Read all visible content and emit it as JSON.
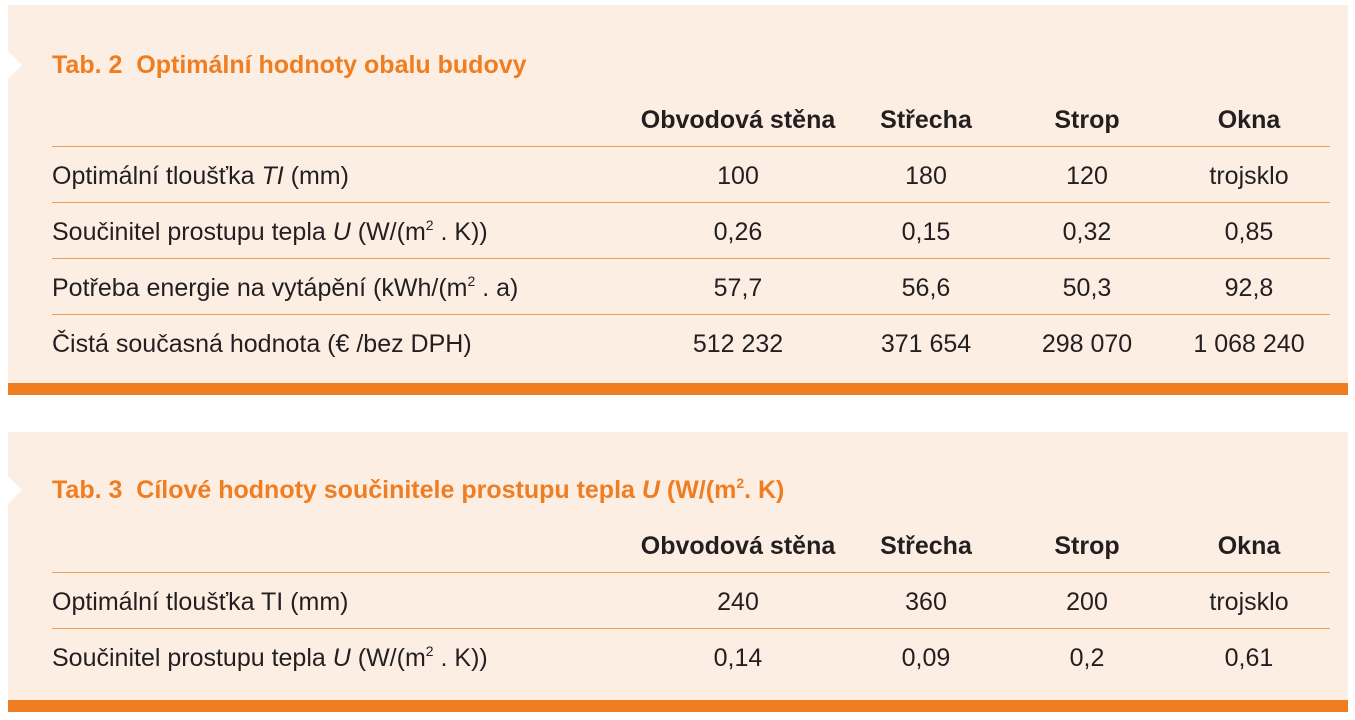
{
  "table2": {
    "title": "Tab. 2  Optimální hodnoty obalu budovy",
    "columns": [
      "Obvodová stěna",
      "Střecha",
      "Strop",
      "Okna"
    ],
    "rows": [
      {
        "label": [
          "Optimální tloušťka ",
          "TI",
          " (mm)"
        ],
        "cells": [
          "100",
          "180",
          "120",
          "trojsklo"
        ]
      },
      {
        "label": [
          "Součinitel prostupu tepla ",
          "U",
          " (W/(m",
          "2",
          " . K))"
        ],
        "cells": [
          "0,26",
          "0,15",
          "0,32",
          "0,85"
        ]
      },
      {
        "label": [
          "Potřeba energie na vytápění (kWh/(m",
          "2",
          " . a)"
        ],
        "cells": [
          "57,7",
          "56,6",
          "50,3",
          "92,8"
        ]
      },
      {
        "label": [
          "Čistá současná hodnota (€ /bez DPH)"
        ],
        "cells": [
          "512 232",
          "371 654",
          "298 070",
          "1 068 240"
        ]
      }
    ]
  },
  "table3": {
    "title": [
      "Tab. 3  Cílové hodnoty součinitele prostupu tepla ",
      "U",
      " (W/(m",
      "2",
      ". K)"
    ],
    "columns": [
      "Obvodová stěna",
      "Střecha",
      "Strop",
      "Okna"
    ],
    "rows": [
      {
        "label": [
          "Optimální tloušťka TI (mm)"
        ],
        "cells": [
          "240",
          "360",
          "200",
          "trojsklo"
        ]
      },
      {
        "label": [
          "Součinitel prostupu tepla ",
          "U",
          " (W/(m",
          "2",
          " . K))"
        ],
        "cells": [
          "0,14",
          "0,09",
          "0,2",
          "0,61"
        ]
      }
    ]
  }
}
